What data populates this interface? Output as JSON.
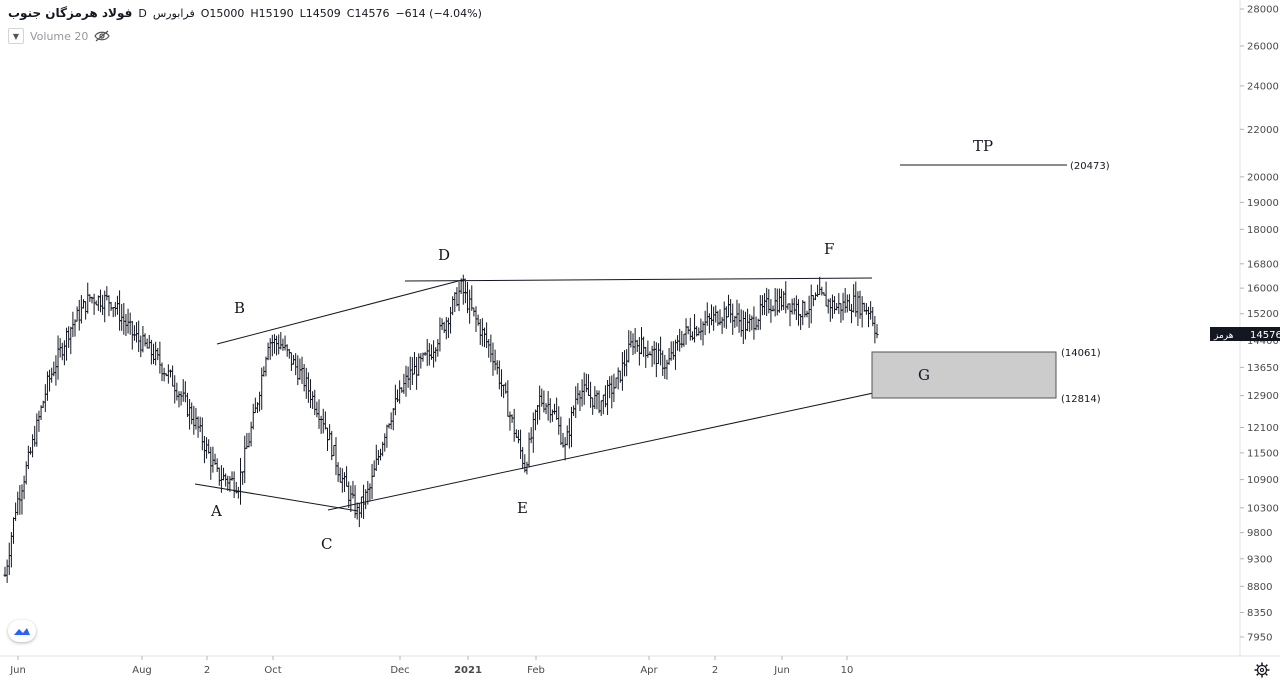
{
  "legend": {
    "symbol": "فولاد هرمزگان جنوب",
    "interval": "D",
    "exchange": "فرابورس",
    "open": "O15000",
    "high": "H15190",
    "low": "L14509",
    "close": "C14576",
    "change": "−614 (−4.04%)"
  },
  "volume_label": "Volume 20",
  "current_price": {
    "value": "14576",
    "tag": "هرمز"
  },
  "annotations": {
    "wave_labels": [
      "A",
      "B",
      "C",
      "D",
      "E",
      "F",
      "G",
      "TP"
    ],
    "tp_level": "(20473)",
    "zone_upper": "(14061)",
    "zone_lower": "(12814)"
  },
  "colors": {
    "bars": "#131722",
    "zone": "#cccccc",
    "zone_border": "#555555",
    "grid": "#f0f3fa"
  },
  "chart_data": {
    "type": "ohlc",
    "title": "",
    "y_scale": "log",
    "y_ticks": [
      28000,
      26000,
      24000,
      22000,
      20000,
      19000,
      18000,
      16800,
      16000,
      15200,
      14400,
      13650,
      12900,
      12100,
      11500,
      10900,
      10300,
      9800,
      9300,
      8800,
      8350,
      7950
    ],
    "x_ticks": [
      "Jun",
      "Aug",
      "2",
      "Oct",
      "Dec",
      "2021",
      "Feb",
      "Apr",
      "2",
      "Jun",
      "10"
    ],
    "levels": [
      {
        "name": "TP",
        "value": 20473
      },
      {
        "name": "zone_upper",
        "value": 14061
      },
      {
        "name": "zone_lower",
        "value": 12814
      }
    ],
    "pivots": [
      {
        "label": "A",
        "price": 10700
      },
      {
        "label": "B",
        "price": 14800
      },
      {
        "label": "C",
        "price": 10150
      },
      {
        "label": "D",
        "price": 16300
      },
      {
        "label": "E",
        "price": 10950
      },
      {
        "label": "F",
        "price": 16300
      }
    ],
    "key_points": [
      [
        0,
        9000
      ],
      [
        5,
        10300
      ],
      [
        12,
        11500
      ],
      [
        20,
        13200
      ],
      [
        30,
        14700
      ],
      [
        40,
        15700
      ],
      [
        50,
        15600
      ],
      [
        60,
        14600
      ],
      [
        70,
        14000
      ],
      [
        80,
        13200
      ],
      [
        90,
        12200
      ],
      [
        100,
        11000
      ],
      [
        110,
        10800
      ],
      [
        118,
        12500
      ],
      [
        124,
        14400
      ],
      [
        130,
        14300
      ],
      [
        140,
        13400
      ],
      [
        150,
        12300
      ],
      [
        158,
        11000
      ],
      [
        166,
        10200
      ],
      [
        172,
        10700
      ],
      [
        180,
        12200
      ],
      [
        190,
        13400
      ],
      [
        200,
        14000
      ],
      [
        210,
        15300
      ],
      [
        215,
        16000
      ],
      [
        222,
        15000
      ],
      [
        230,
        14000
      ],
      [
        238,
        12400
      ],
      [
        245,
        11200
      ],
      [
        252,
        12800
      ],
      [
        258,
        12600
      ],
      [
        264,
        11600
      ],
      [
        270,
        13100
      ],
      [
        280,
        12700
      ],
      [
        288,
        13200
      ],
      [
        296,
        14400
      ],
      [
        304,
        14100
      ],
      [
        312,
        13700
      ],
      [
        320,
        14600
      ],
      [
        330,
        14900
      ],
      [
        340,
        15300
      ],
      [
        350,
        14800
      ],
      [
        360,
        15500
      ],
      [
        368,
        15600
      ],
      [
        376,
        15300
      ],
      [
        384,
        15700
      ],
      [
        392,
        15400
      ],
      [
        400,
        15550
      ],
      [
        408,
        15300
      ],
      [
        411,
        14576
      ]
    ]
  }
}
